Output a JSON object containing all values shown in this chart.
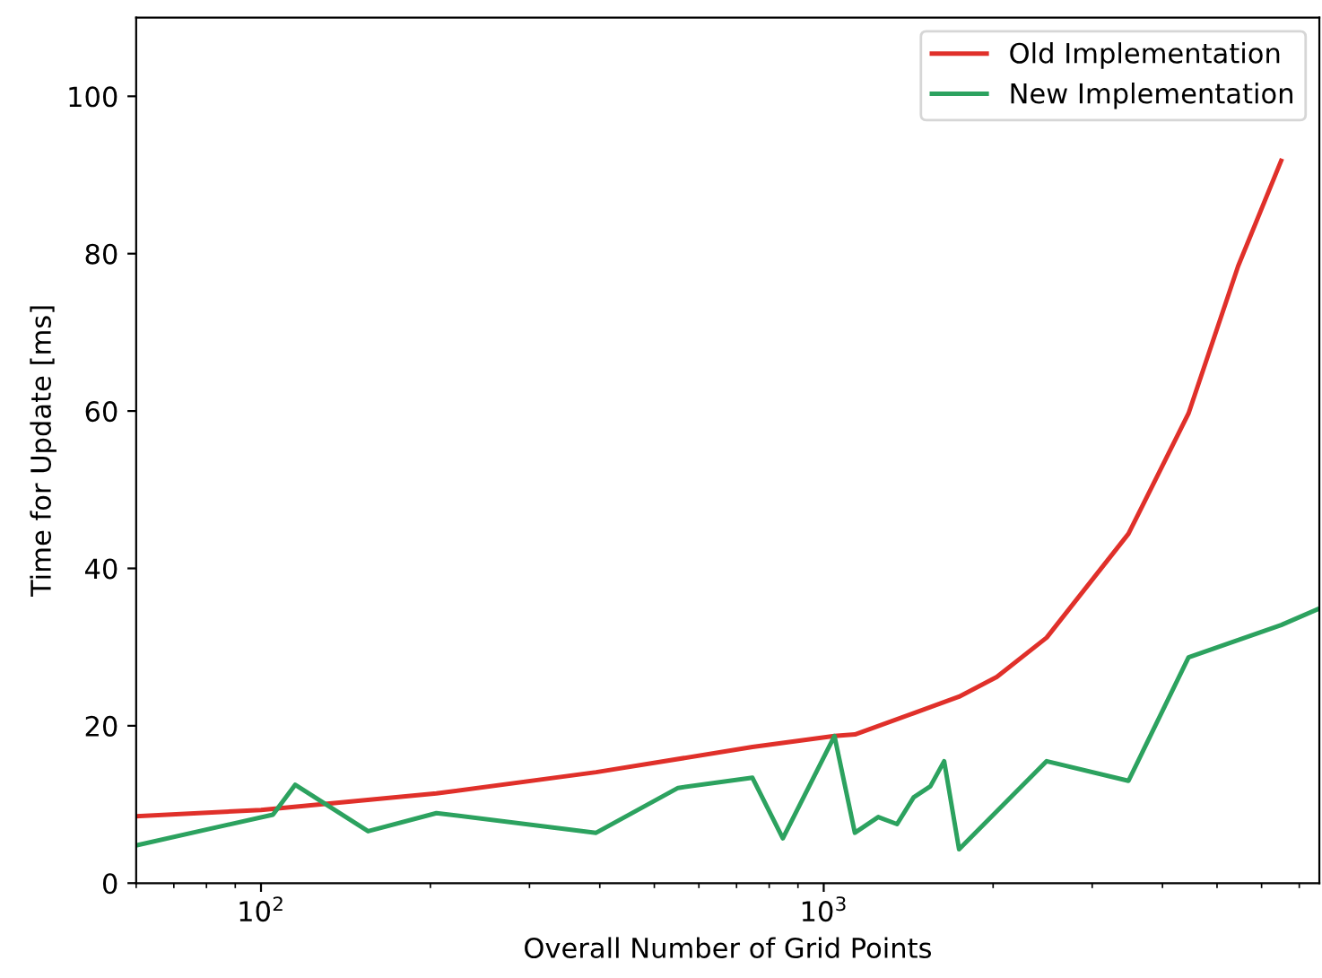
{
  "chart_data": {
    "type": "line",
    "xlabel": "Overall Number of Grid Points",
    "ylabel": "Time for Update [ms]",
    "log": "x",
    "xlim": [
      60,
      7600
    ],
    "xticks": [
      {
        "value": 100,
        "label": "10$^{2}$"
      },
      {
        "value": 1000,
        "label": "10$^{3}$"
      }
    ],
    "ylim": [
      0,
      110
    ],
    "yticks": [
      0,
      20,
      40,
      60,
      80,
      100
    ],
    "grid": false,
    "legend": "top right",
    "series": [
      {
        "name": "Old Implementation",
        "color": "#e0302a",
        "x": [
          60,
          100,
          205,
          394,
          747,
          1045,
          1136,
          1445,
          1740,
          2030,
          2490,
          3480,
          4450,
          5450,
          6500
        ],
        "values": [
          8.5,
          9.3,
          11.4,
          14.1,
          17.3,
          18.7,
          18.9,
          21.6,
          23.7,
          26.2,
          31.2,
          44.4,
          59.7,
          78.4,
          91.8
        ]
      },
      {
        "name": "New Implementation",
        "color": "#2ca25f",
        "x": [
          60,
          105,
          115,
          155,
          205,
          394,
          551,
          747,
          846,
          1045,
          1136,
          1250,
          1350,
          1445,
          1547,
          1637,
          1740,
          2490,
          3480,
          4450,
          6500,
          7600
        ],
        "values": [
          4.8,
          8.7,
          12.5,
          6.6,
          8.9,
          6.4,
          12.1,
          13.4,
          5.7,
          18.7,
          6.4,
          8.4,
          7.5,
          10.9,
          12.3,
          15.5,
          4.3,
          15.5,
          13.0,
          28.7,
          32.8,
          34.9
        ]
      }
    ]
  }
}
